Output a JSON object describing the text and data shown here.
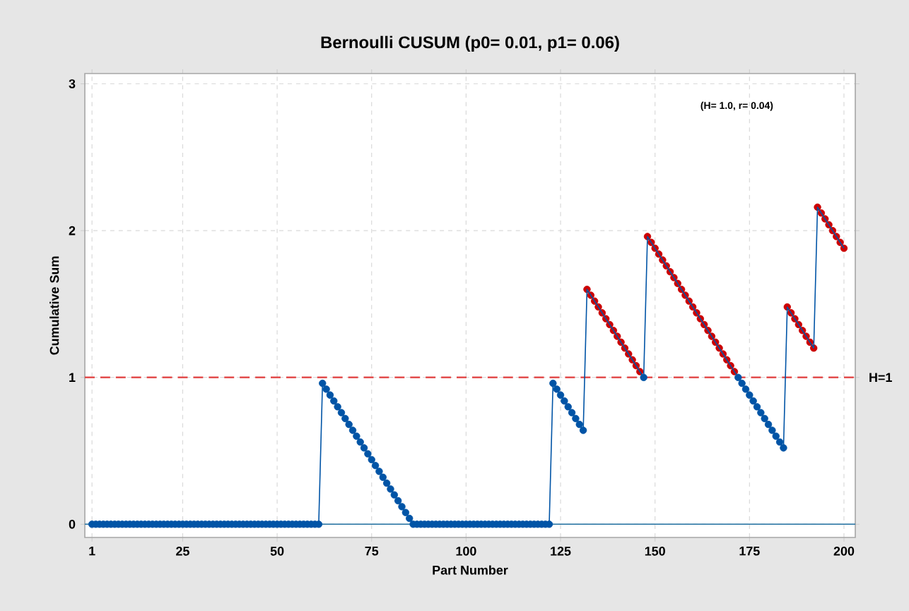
{
  "chart_data": {
    "type": "line",
    "title": "Bernoulli CUSUM (p0= 0.01, p1= 0.06)",
    "xlabel": "Part Number",
    "ylabel": "Cumulative Sum",
    "annotations": [
      "(H= 1.0, r= 0.04)"
    ],
    "xlim": [
      -0.9,
      203
    ],
    "ylim": [
      -0.09,
      3.07
    ],
    "xticks": [
      1,
      25,
      50,
      75,
      100,
      125,
      150,
      175,
      200
    ],
    "yticks": [
      0,
      1,
      2,
      3
    ],
    "grid": true,
    "marker": "circle",
    "line_style": "solid",
    "ref_lines": [
      {
        "axis": "y",
        "value": 1,
        "label": "H=1",
        "color": "#e03c3c",
        "line_style": "dashed"
      },
      {
        "axis": "y",
        "value": 0,
        "color": "#1f6f9f",
        "line_style": "solid"
      }
    ],
    "series": [
      {
        "color": "#0054a6",
        "x": [
          1,
          2,
          3,
          4,
          5,
          6,
          7,
          8,
          9,
          10,
          11,
          12,
          13,
          14,
          15,
          16,
          17,
          18,
          19,
          20,
          21,
          22,
          23,
          24,
          25,
          26,
          27,
          28,
          29,
          30,
          31,
          32,
          33,
          34,
          35,
          36,
          37,
          38,
          39,
          40,
          41,
          42,
          43,
          44,
          45,
          46,
          47,
          48,
          49,
          50,
          51,
          52,
          53,
          54,
          55,
          56,
          57,
          58,
          59,
          60,
          61,
          62,
          63,
          64,
          65,
          66,
          67,
          68,
          69,
          70,
          71,
          72,
          73,
          74,
          75,
          76,
          77,
          78,
          79,
          80,
          81,
          82,
          83,
          84,
          85,
          86,
          87,
          88,
          89,
          90,
          91,
          92,
          93,
          94,
          95,
          96,
          97,
          98,
          99,
          100,
          101,
          102,
          103,
          104,
          105,
          106,
          107,
          108,
          109,
          110,
          111,
          112,
          113,
          114,
          115,
          116,
          117,
          118,
          119,
          120,
          121,
          122,
          123,
          124,
          125,
          126,
          127,
          128,
          129,
          130,
          131,
          132,
          133,
          134,
          135,
          136,
          137,
          138,
          139,
          140,
          141,
          142,
          143,
          144,
          145,
          146,
          147,
          148,
          149,
          150,
          151,
          152,
          153,
          154,
          155,
          156,
          157,
          158,
          159,
          160,
          161,
          162,
          163,
          164,
          165,
          166,
          167,
          168,
          169,
          170,
          171,
          172,
          173,
          174,
          175,
          176,
          177,
          178,
          179,
          180,
          181,
          182,
          183,
          184,
          185,
          186,
          187,
          188,
          189,
          190,
          191,
          192,
          193,
          194,
          195,
          196,
          197,
          198,
          199,
          200
        ],
        "values": [
          0,
          0,
          0,
          0,
          0,
          0,
          0,
          0,
          0,
          0,
          0,
          0,
          0,
          0,
          0,
          0,
          0,
          0,
          0,
          0,
          0,
          0,
          0,
          0,
          0,
          0,
          0,
          0,
          0,
          0,
          0,
          0,
          0,
          0,
          0,
          0,
          0,
          0,
          0,
          0,
          0,
          0,
          0,
          0,
          0,
          0,
          0,
          0,
          0,
          0,
          0,
          0,
          0,
          0,
          0,
          0,
          0,
          0,
          0,
          0,
          0,
          0.96,
          0.92,
          0.88,
          0.84,
          0.8,
          0.76,
          0.72,
          0.68,
          0.64,
          0.6,
          0.56,
          0.52,
          0.48,
          0.44,
          0.4,
          0.36,
          0.32,
          0.28,
          0.24,
          0.2,
          0.16,
          0.12,
          0.08,
          0.04,
          0,
          0,
          0,
          0,
          0,
          0,
          0,
          0,
          0,
          0,
          0,
          0,
          0,
          0,
          0,
          0,
          0,
          0,
          0,
          0,
          0,
          0,
          0,
          0,
          0,
          0,
          0,
          0,
          0,
          0,
          0,
          0,
          0,
          0,
          0,
          0,
          0,
          0.96,
          0.92,
          0.88,
          0.84,
          0.8,
          0.76,
          0.72,
          0.68,
          0.64,
          1.6,
          1.56,
          1.52,
          1.48,
          1.44,
          1.4,
          1.36,
          1.32,
          1.28,
          1.24,
          1.2,
          1.16,
          1.12,
          1.08,
          1.04,
          1.0,
          1.96,
          1.92,
          1.88,
          1.84,
          1.8,
          1.76,
          1.72,
          1.68,
          1.64,
          1.6,
          1.56,
          1.52,
          1.48,
          1.44,
          1.4,
          1.36,
          1.32,
          1.28,
          1.24,
          1.2,
          1.16,
          1.12,
          1.08,
          1.04,
          1.0,
          0.96,
          0.92,
          0.88,
          0.84,
          0.8,
          0.76,
          0.72,
          0.68,
          0.64,
          0.6,
          0.56,
          0.52,
          1.48,
          1.44,
          1.4,
          1.36,
          1.32,
          1.28,
          1.24,
          1.2,
          2.16,
          2.12,
          2.08,
          2.04,
          2.0,
          1.96,
          1.92,
          1.88
        ],
        "colors": [
          "#0054a6",
          "#0054a6",
          "#0054a6",
          "#0054a6",
          "#0054a6",
          "#0054a6",
          "#0054a6",
          "#0054a6",
          "#0054a6",
          "#0054a6",
          "#0054a6",
          "#0054a6",
          "#0054a6",
          "#0054a6",
          "#0054a6",
          "#0054a6",
          "#0054a6",
          "#0054a6",
          "#0054a6",
          "#0054a6",
          "#0054a6",
          "#0054a6",
          "#0054a6",
          "#0054a6",
          "#0054a6",
          "#0054a6",
          "#0054a6",
          "#0054a6",
          "#0054a6",
          "#0054a6",
          "#0054a6",
          "#0054a6",
          "#0054a6",
          "#0054a6",
          "#0054a6",
          "#0054a6",
          "#0054a6",
          "#0054a6",
          "#0054a6",
          "#0054a6",
          "#0054a6",
          "#0054a6",
          "#0054a6",
          "#0054a6",
          "#0054a6",
          "#0054a6",
          "#0054a6",
          "#0054a6",
          "#0054a6",
          "#0054a6",
          "#0054a6",
          "#0054a6",
          "#0054a6",
          "#0054a6",
          "#0054a6",
          "#0054a6",
          "#0054a6",
          "#0054a6",
          "#0054a6",
          "#0054a6",
          "#0054a6",
          "#0054a6",
          "#0054a6",
          "#0054a6",
          "#0054a6",
          "#0054a6",
          "#0054a6",
          "#0054a6",
          "#0054a6",
          "#0054a6",
          "#0054a6",
          "#0054a6",
          "#0054a6",
          "#0054a6",
          "#0054a6",
          "#0054a6",
          "#0054a6",
          "#0054a6",
          "#0054a6",
          "#0054a6",
          "#0054a6",
          "#0054a6",
          "#0054a6",
          "#0054a6",
          "#0054a6",
          "#0054a6",
          "#0054a6",
          "#0054a6",
          "#0054a6",
          "#0054a6",
          "#0054a6",
          "#0054a6",
          "#0054a6",
          "#0054a6",
          "#0054a6",
          "#0054a6",
          "#0054a6",
          "#0054a6",
          "#0054a6",
          "#0054a6",
          "#0054a6",
          "#0054a6",
          "#0054a6",
          "#0054a6",
          "#0054a6",
          "#0054a6",
          "#0054a6",
          "#0054a6",
          "#0054a6",
          "#0054a6",
          "#0054a6",
          "#0054a6",
          "#0054a6",
          "#0054a6",
          "#0054a6",
          "#0054a6",
          "#0054a6",
          "#0054a6",
          "#0054a6",
          "#0054a6",
          "#0054a6",
          "#0054a6",
          "#0054a6",
          "#0054a6",
          "#0054a6",
          "#0054a6",
          "#0054a6",
          "#0054a6",
          "#0054a6",
          "#0054a6",
          "#0054a6",
          "#cc0000",
          "#cc0000",
          "#cc0000",
          "#cc0000",
          "#cc0000",
          "#cc0000",
          "#cc0000",
          "#cc0000",
          "#cc0000",
          "#cc0000",
          "#cc0000",
          "#cc0000",
          "#cc0000",
          "#cc0000",
          "#cc0000",
          "#0054a6",
          "#cc0000",
          "#cc0000",
          "#cc0000",
          "#cc0000",
          "#cc0000",
          "#cc0000",
          "#cc0000",
          "#cc0000",
          "#cc0000",
          "#cc0000",
          "#cc0000",
          "#cc0000",
          "#cc0000",
          "#cc0000",
          "#cc0000",
          "#cc0000",
          "#cc0000",
          "#cc0000",
          "#cc0000",
          "#cc0000",
          "#cc0000",
          "#cc0000",
          "#cc0000",
          "#cc0000",
          "#0054a6",
          "#0054a6",
          "#0054a6",
          "#0054a6",
          "#0054a6",
          "#0054a6",
          "#0054a6",
          "#0054a6",
          "#0054a6",
          "#0054a6",
          "#0054a6",
          "#0054a6",
          "#0054a6",
          "#cc0000",
          "#cc0000",
          "#cc0000",
          "#cc0000",
          "#cc0000",
          "#cc0000",
          "#cc0000",
          "#cc0000",
          "#cc0000",
          "#cc0000",
          "#cc0000",
          "#cc0000",
          "#cc0000",
          "#cc0000",
          "#cc0000",
          "#cc0000"
        ]
      }
    ]
  }
}
